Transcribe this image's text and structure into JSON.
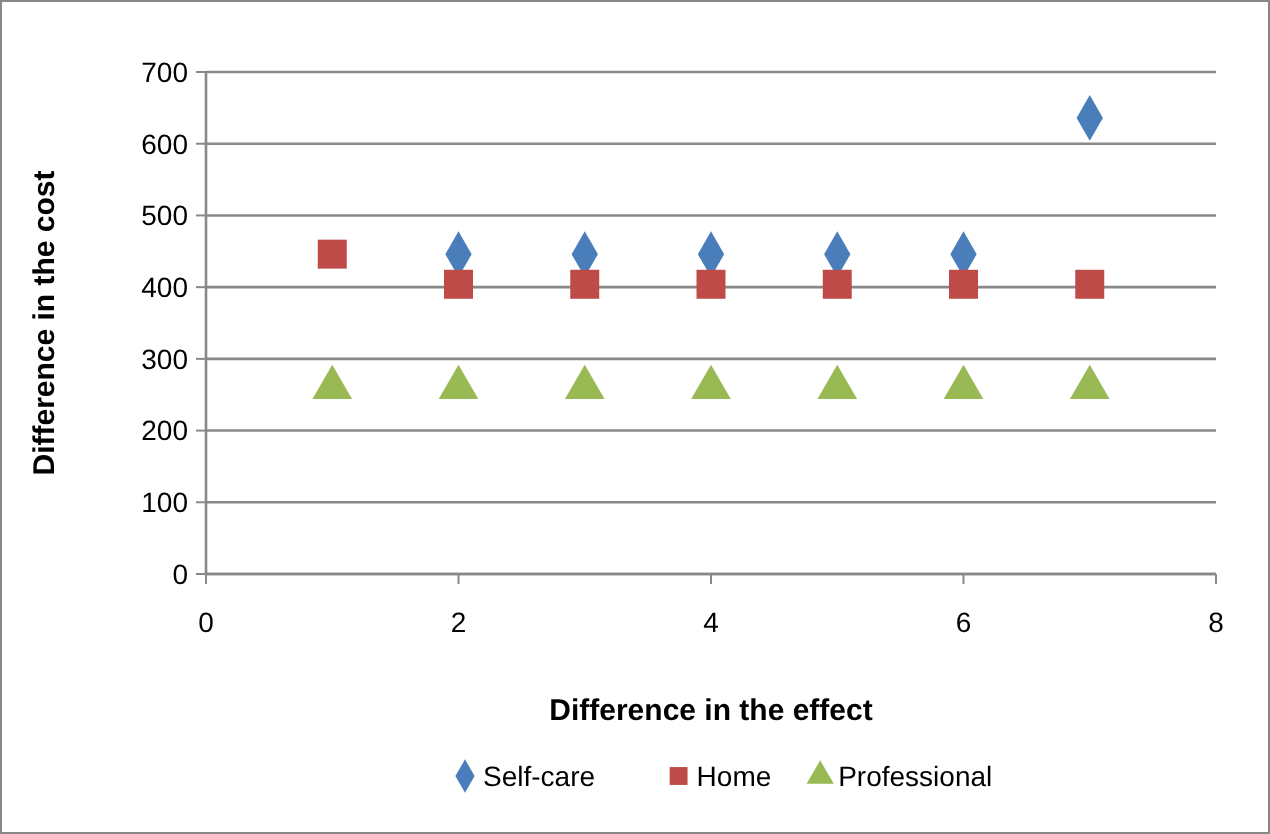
{
  "chart_data": {
    "type": "scatter",
    "xlabel": "Difference in the effect",
    "ylabel": "Difference in the cost",
    "series": [
      {
        "name": "Self-care",
        "color": "#4a7ebb",
        "marker": "diamond",
        "x": [
          2,
          3,
          4,
          5,
          6,
          7
        ],
        "values": [
          446,
          446,
          446,
          446,
          446,
          636
        ]
      },
      {
        "name": "Home",
        "color": "#be4b48",
        "marker": "square",
        "x": [
          1,
          2,
          3,
          4,
          5,
          6,
          7
        ],
        "values": [
          446,
          404,
          404,
          404,
          404,
          404,
          404
        ]
      },
      {
        "name": "Professional",
        "color": "#98b954",
        "marker": "triangle",
        "x": [
          1,
          2,
          3,
          4,
          5,
          6,
          7
        ],
        "values": [
          260,
          260,
          260,
          260,
          260,
          260,
          260
        ]
      }
    ],
    "xlim": [
      0,
      8
    ],
    "xticks": [
      0,
      2,
      4,
      6,
      8
    ],
    "ylim": [
      0,
      700
    ],
    "yticks": [
      0,
      100,
      200,
      300,
      400,
      500,
      600,
      700
    ],
    "grid": "y",
    "legend": "bottom"
  }
}
